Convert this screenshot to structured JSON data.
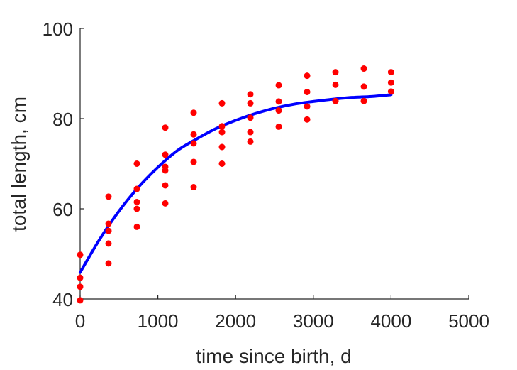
{
  "chart_data": {
    "type": "scatter",
    "xlabel": "time since birth, d",
    "ylabel": "total length, cm",
    "xlim": [
      0,
      5000
    ],
    "ylim": [
      40,
      100
    ],
    "x_ticks": [
      "0",
      "1000",
      "2000",
      "3000",
      "4000",
      "5000"
    ],
    "y_ticks": [
      "40",
      "60",
      "80",
      "100"
    ],
    "grid": false,
    "series": [
      {
        "type": "scatter",
        "color": "#ff0000",
        "points": [
          [
            0,
            49.8
          ],
          [
            0,
            44.7
          ],
          [
            0,
            42.7
          ],
          [
            0,
            39.7
          ],
          [
            365,
            62.7
          ],
          [
            365,
            56.7
          ],
          [
            365,
            55.1
          ],
          [
            365,
            52.3
          ],
          [
            365,
            47.9
          ],
          [
            730,
            70.0
          ],
          [
            730,
            64.4
          ],
          [
            730,
            61.5
          ],
          [
            730,
            60.0
          ],
          [
            730,
            56.0
          ],
          [
            1095,
            78.0
          ],
          [
            1095,
            72.0
          ],
          [
            1095,
            69.3
          ],
          [
            1095,
            68.5
          ],
          [
            1095,
            65.2
          ],
          [
            1095,
            61.2
          ],
          [
            1460,
            81.3
          ],
          [
            1460,
            76.5
          ],
          [
            1460,
            74.5
          ],
          [
            1460,
            70.4
          ],
          [
            1460,
            64.8
          ],
          [
            1825,
            83.4
          ],
          [
            1825,
            78.3
          ],
          [
            1825,
            77.0
          ],
          [
            1825,
            73.7
          ],
          [
            1825,
            70.0
          ],
          [
            2190,
            85.4
          ],
          [
            2190,
            83.4
          ],
          [
            2190,
            80.2
          ],
          [
            2190,
            77.0
          ],
          [
            2190,
            74.9
          ],
          [
            2555,
            87.4
          ],
          [
            2555,
            83.8
          ],
          [
            2555,
            81.8
          ],
          [
            2555,
            78.2
          ],
          [
            2920,
            89.5
          ],
          [
            2920,
            85.9
          ],
          [
            2920,
            82.7
          ],
          [
            2920,
            79.8
          ],
          [
            3285,
            90.3
          ],
          [
            3285,
            87.5
          ],
          [
            3285,
            83.9
          ],
          [
            3650,
            91.1
          ],
          [
            3650,
            87.1
          ],
          [
            3650,
            83.9
          ],
          [
            4000,
            90.3
          ],
          [
            4000,
            88.0
          ],
          [
            4000,
            86.0
          ]
        ]
      },
      {
        "type": "line",
        "color": "#0000ff",
        "curve": {
          "x": [
            0,
            250,
            500,
            750,
            1000,
            1250,
            1500,
            1750,
            2000,
            2250,
            2500,
            2750,
            3000,
            3250,
            3500,
            3750,
            4000
          ],
          "y": [
            45.9,
            53.2,
            59.5,
            64.8,
            69.2,
            72.9,
            75.5,
            77.8,
            79.6,
            81.1,
            82.3,
            83.2,
            83.8,
            84.3,
            84.7,
            84.9,
            85.3
          ]
        }
      }
    ]
  }
}
